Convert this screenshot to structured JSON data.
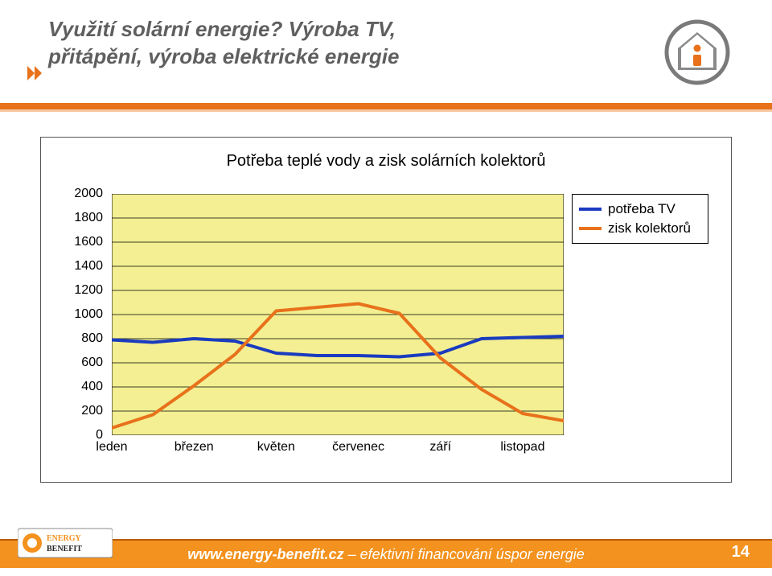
{
  "title": {
    "line1": "Využití solární energie? Výroba TV,",
    "line2": "přitápění, výroba elektrické energie",
    "fontsize": 26,
    "color": "#5f5f5f"
  },
  "header_icon": {
    "border": "#7a7a7a",
    "accent": "#e8711b",
    "bg": "#ffffff"
  },
  "bullet_icon": {
    "fill": "#e8711b"
  },
  "footer": {
    "link": "www.energy-benefit.cz",
    "rest": " – efektivní financování úspor energie",
    "fontsize": 18,
    "band_color": "#f3921e",
    "page_number": "14"
  },
  "logo": {
    "text1": "ENERGY",
    "text2": "BENEFIT",
    "orange": "#f3921e",
    "dark": "#242424"
  },
  "chart": {
    "type": "line",
    "title": "Potřeba teplé vody a zisk solárních kolektorů",
    "title_fontsize": 20,
    "plot_bg": "#f3ef92",
    "grid_color": "#000000",
    "axis_fontsize": 16,
    "line_width": 4,
    "ylim": [
      0,
      2000
    ],
    "ytick_step": 200,
    "yticks": [
      "0",
      "200",
      "400",
      "600",
      "800",
      "1000",
      "1200",
      "1400",
      "1600",
      "1800",
      "2000"
    ],
    "x_tick_labels": [
      "leden",
      "březen",
      "květen",
      "červenec",
      "září",
      "listopad"
    ],
    "x_tick_positions": [
      0,
      2,
      4,
      6,
      8,
      10
    ],
    "n_points": 12,
    "series": [
      {
        "name": "potřeba TV",
        "color": "#1a3bbf",
        "values": [
          790,
          770,
          800,
          780,
          680,
          660,
          660,
          650,
          680,
          800,
          810,
          820
        ]
      },
      {
        "name": "zisk kolektorů",
        "color": "#e8711b",
        "values": [
          60,
          170,
          410,
          670,
          1030,
          1060,
          1090,
          1010,
          640,
          380,
          180,
          120
        ]
      }
    ],
    "legend": {
      "fontsize": 17,
      "items": [
        "potřeba TV",
        "zisk kolektorů"
      ]
    }
  }
}
